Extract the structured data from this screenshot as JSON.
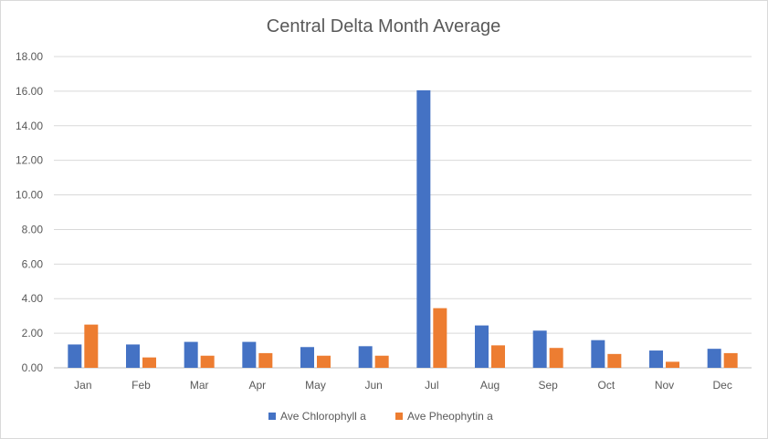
{
  "chart_data": {
    "type": "bar",
    "title": "Central Delta Month Average",
    "xlabel": "",
    "ylabel": "",
    "categories": [
      "Jan",
      "Feb",
      "Mar",
      "Apr",
      "May",
      "Jun",
      "Jul",
      "Aug",
      "Sep",
      "Oct",
      "Nov",
      "Dec"
    ],
    "series": [
      {
        "name": "Ave Chlorophyll a",
        "color": "#4472C4",
        "values": [
          1.35,
          1.35,
          1.5,
          1.5,
          1.2,
          1.25,
          16.05,
          2.45,
          2.15,
          1.6,
          1.0,
          1.1
        ]
      },
      {
        "name": "Ave Pheophytin a",
        "color": "#ED7D31",
        "values": [
          2.5,
          0.6,
          0.7,
          0.85,
          0.7,
          0.7,
          3.45,
          1.3,
          1.15,
          0.8,
          0.35,
          0.85
        ]
      }
    ],
    "ylim": [
      0,
      18
    ],
    "yticks": [
      "0.00",
      "2.00",
      "4.00",
      "6.00",
      "8.00",
      "10.00",
      "12.00",
      "14.00",
      "16.00",
      "18.00"
    ],
    "grid": true,
    "legend_position": "bottom"
  }
}
